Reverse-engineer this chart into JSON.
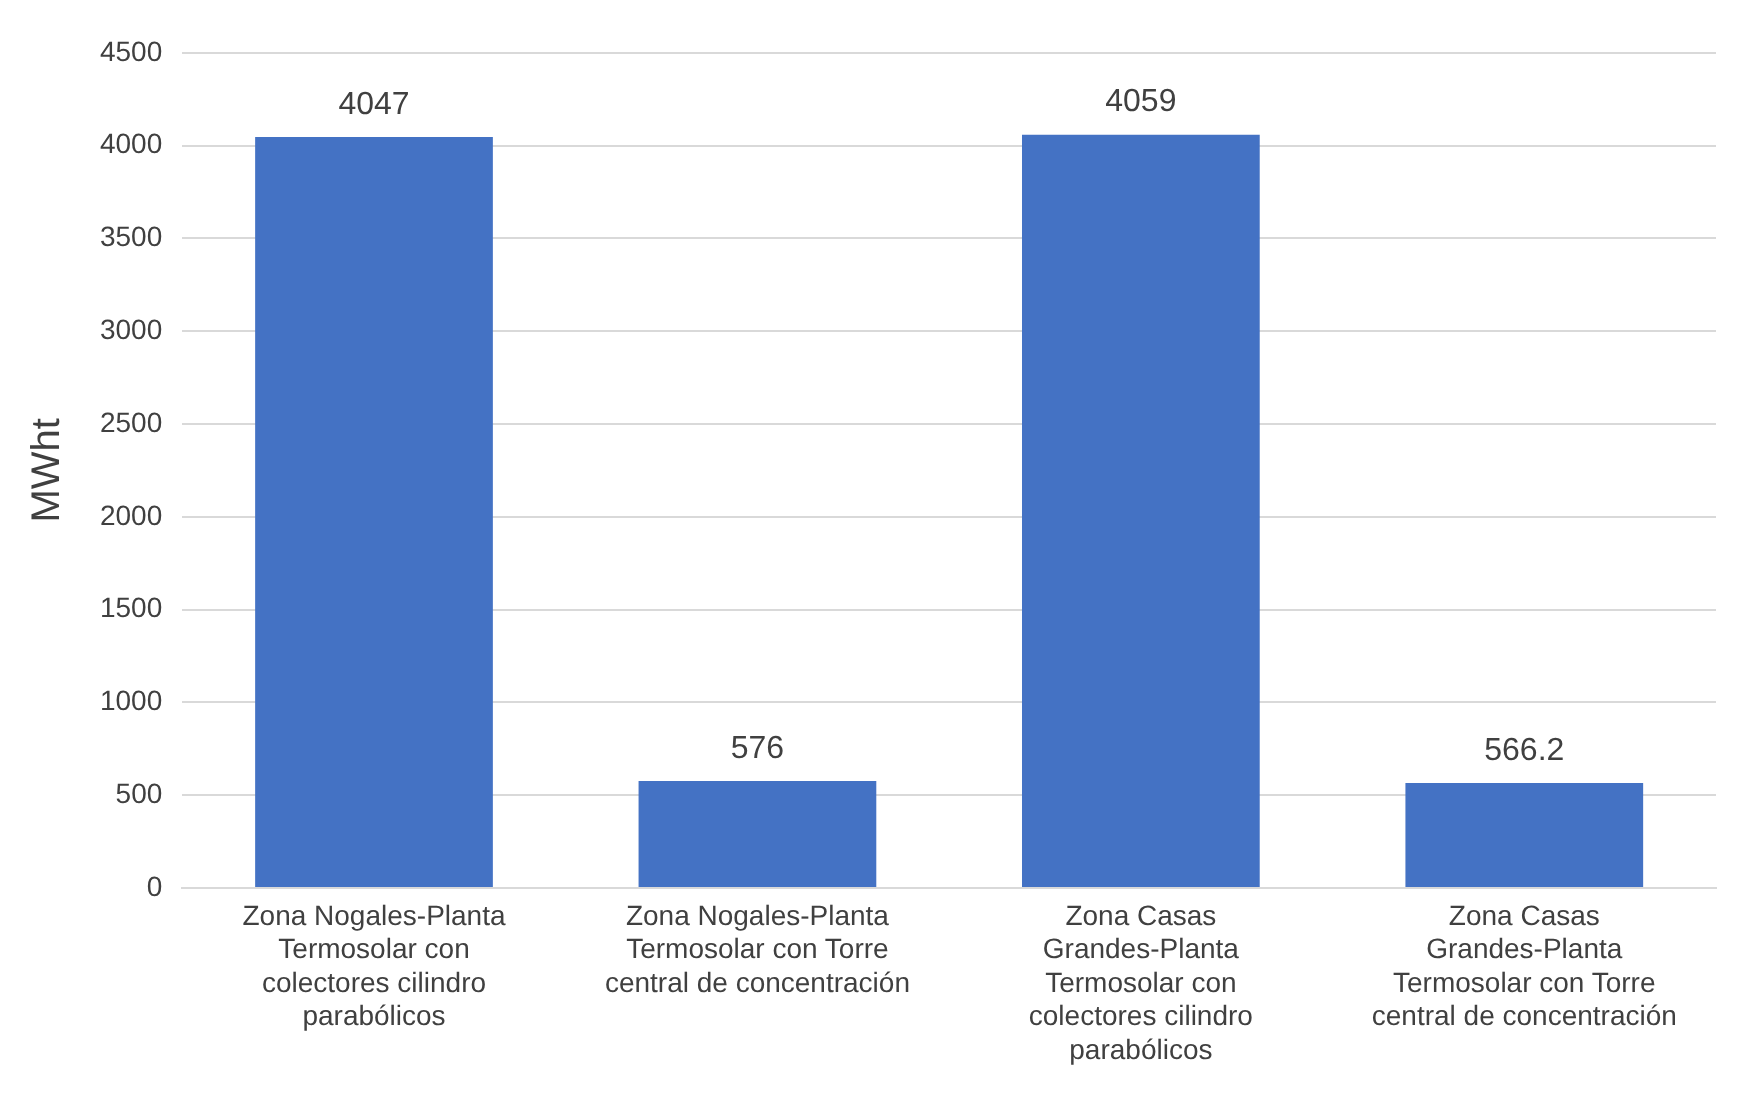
{
  "chart_data": {
    "type": "bar",
    "ylabel": "MWht",
    "categories": [
      "Zona Nogales-Planta Termosolar con colectores cilindro parabólicos",
      "Zona Nogales-Planta Termosolar con Torre central de concentración",
      "Zona Casas Grandes-Planta Termosolar con colectores cilindro parabólicos",
      "Zona Casas Grandes-Planta Termosolar con Torre central de concentración"
    ],
    "values": [
      4047,
      576,
      4059,
      566.2
    ],
    "color": "#4472c4",
    "ylim": [
      0,
      4500
    ],
    "yticks": [
      0,
      500,
      1000,
      1500,
      2000,
      2500,
      3000,
      3500,
      4000,
      4500
    ],
    "grid": "y",
    "data_labels": true,
    "legend": false
  }
}
